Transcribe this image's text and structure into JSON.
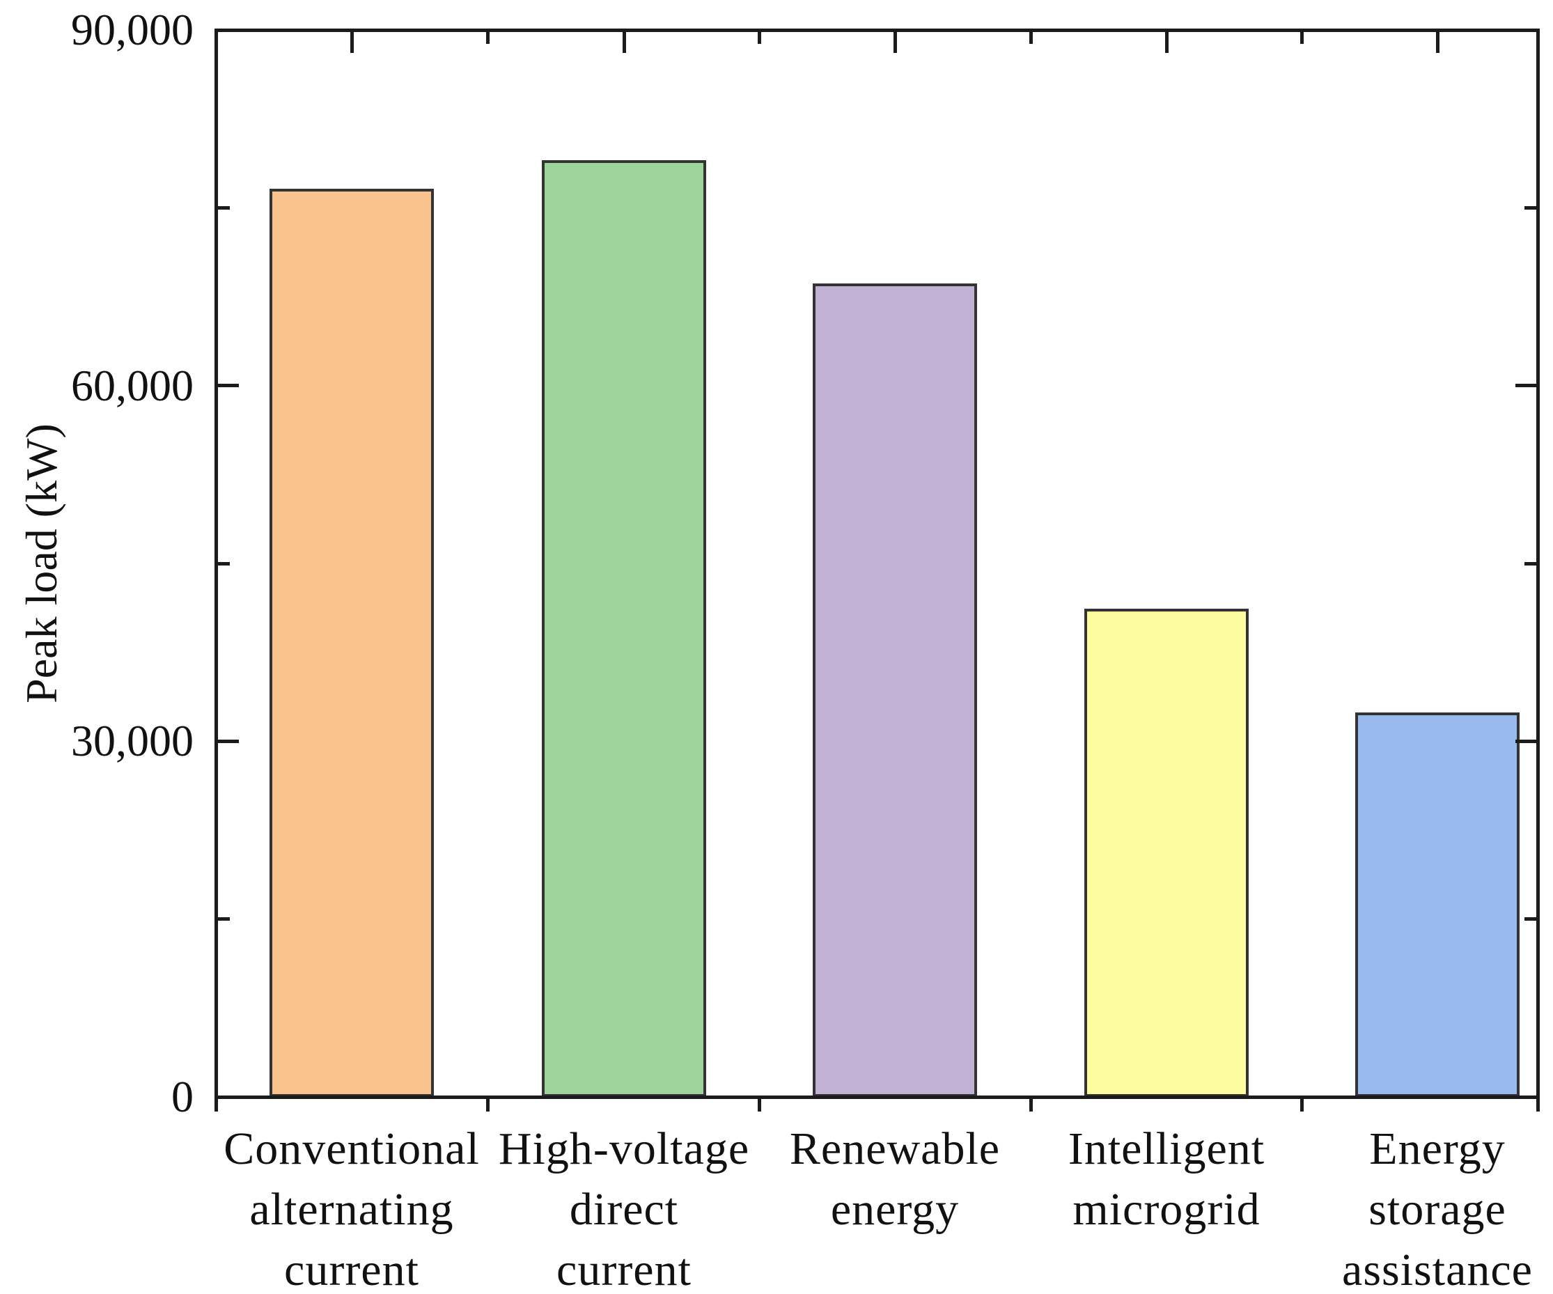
{
  "chart_data": {
    "type": "bar",
    "title": "",
    "xlabel": "",
    "ylabel": "Peak load (kW)",
    "ylim": [
      0,
      90000
    ],
    "grid": false,
    "legend": null,
    "categories": [
      "Conventional alternating current",
      "High-voltage direct current",
      "Renewable energy",
      "Intelligent microgrid",
      "Energy storage assistance"
    ],
    "category_lines": [
      [
        "Conventional",
        "alternating",
        "current"
      ],
      [
        "High-voltage",
        "direct",
        "current"
      ],
      [
        "Renewable",
        "energy"
      ],
      [
        "Intelligent",
        "microgrid"
      ],
      [
        "Energy",
        "storage",
        "assistance"
      ]
    ],
    "values": [
      76600,
      79000,
      68600,
      41200,
      32400
    ],
    "yticks": [
      {
        "value": 0,
        "label": "0"
      },
      {
        "value": 30000,
        "label": "30,000"
      },
      {
        "value": 60000,
        "label": "60,000"
      },
      {
        "value": 90000,
        "label": "90,000"
      }
    ],
    "minor_yticks": [
      15000,
      45000,
      75000
    ],
    "bar_colors": [
      "#F8C38D",
      "#9CD49B",
      "#C1B1D5",
      "#FDFC9E",
      "#98BAEE"
    ],
    "bar_border_color": "#333333",
    "axis_color": "#1b1b1b",
    "text_color": "#111111"
  }
}
